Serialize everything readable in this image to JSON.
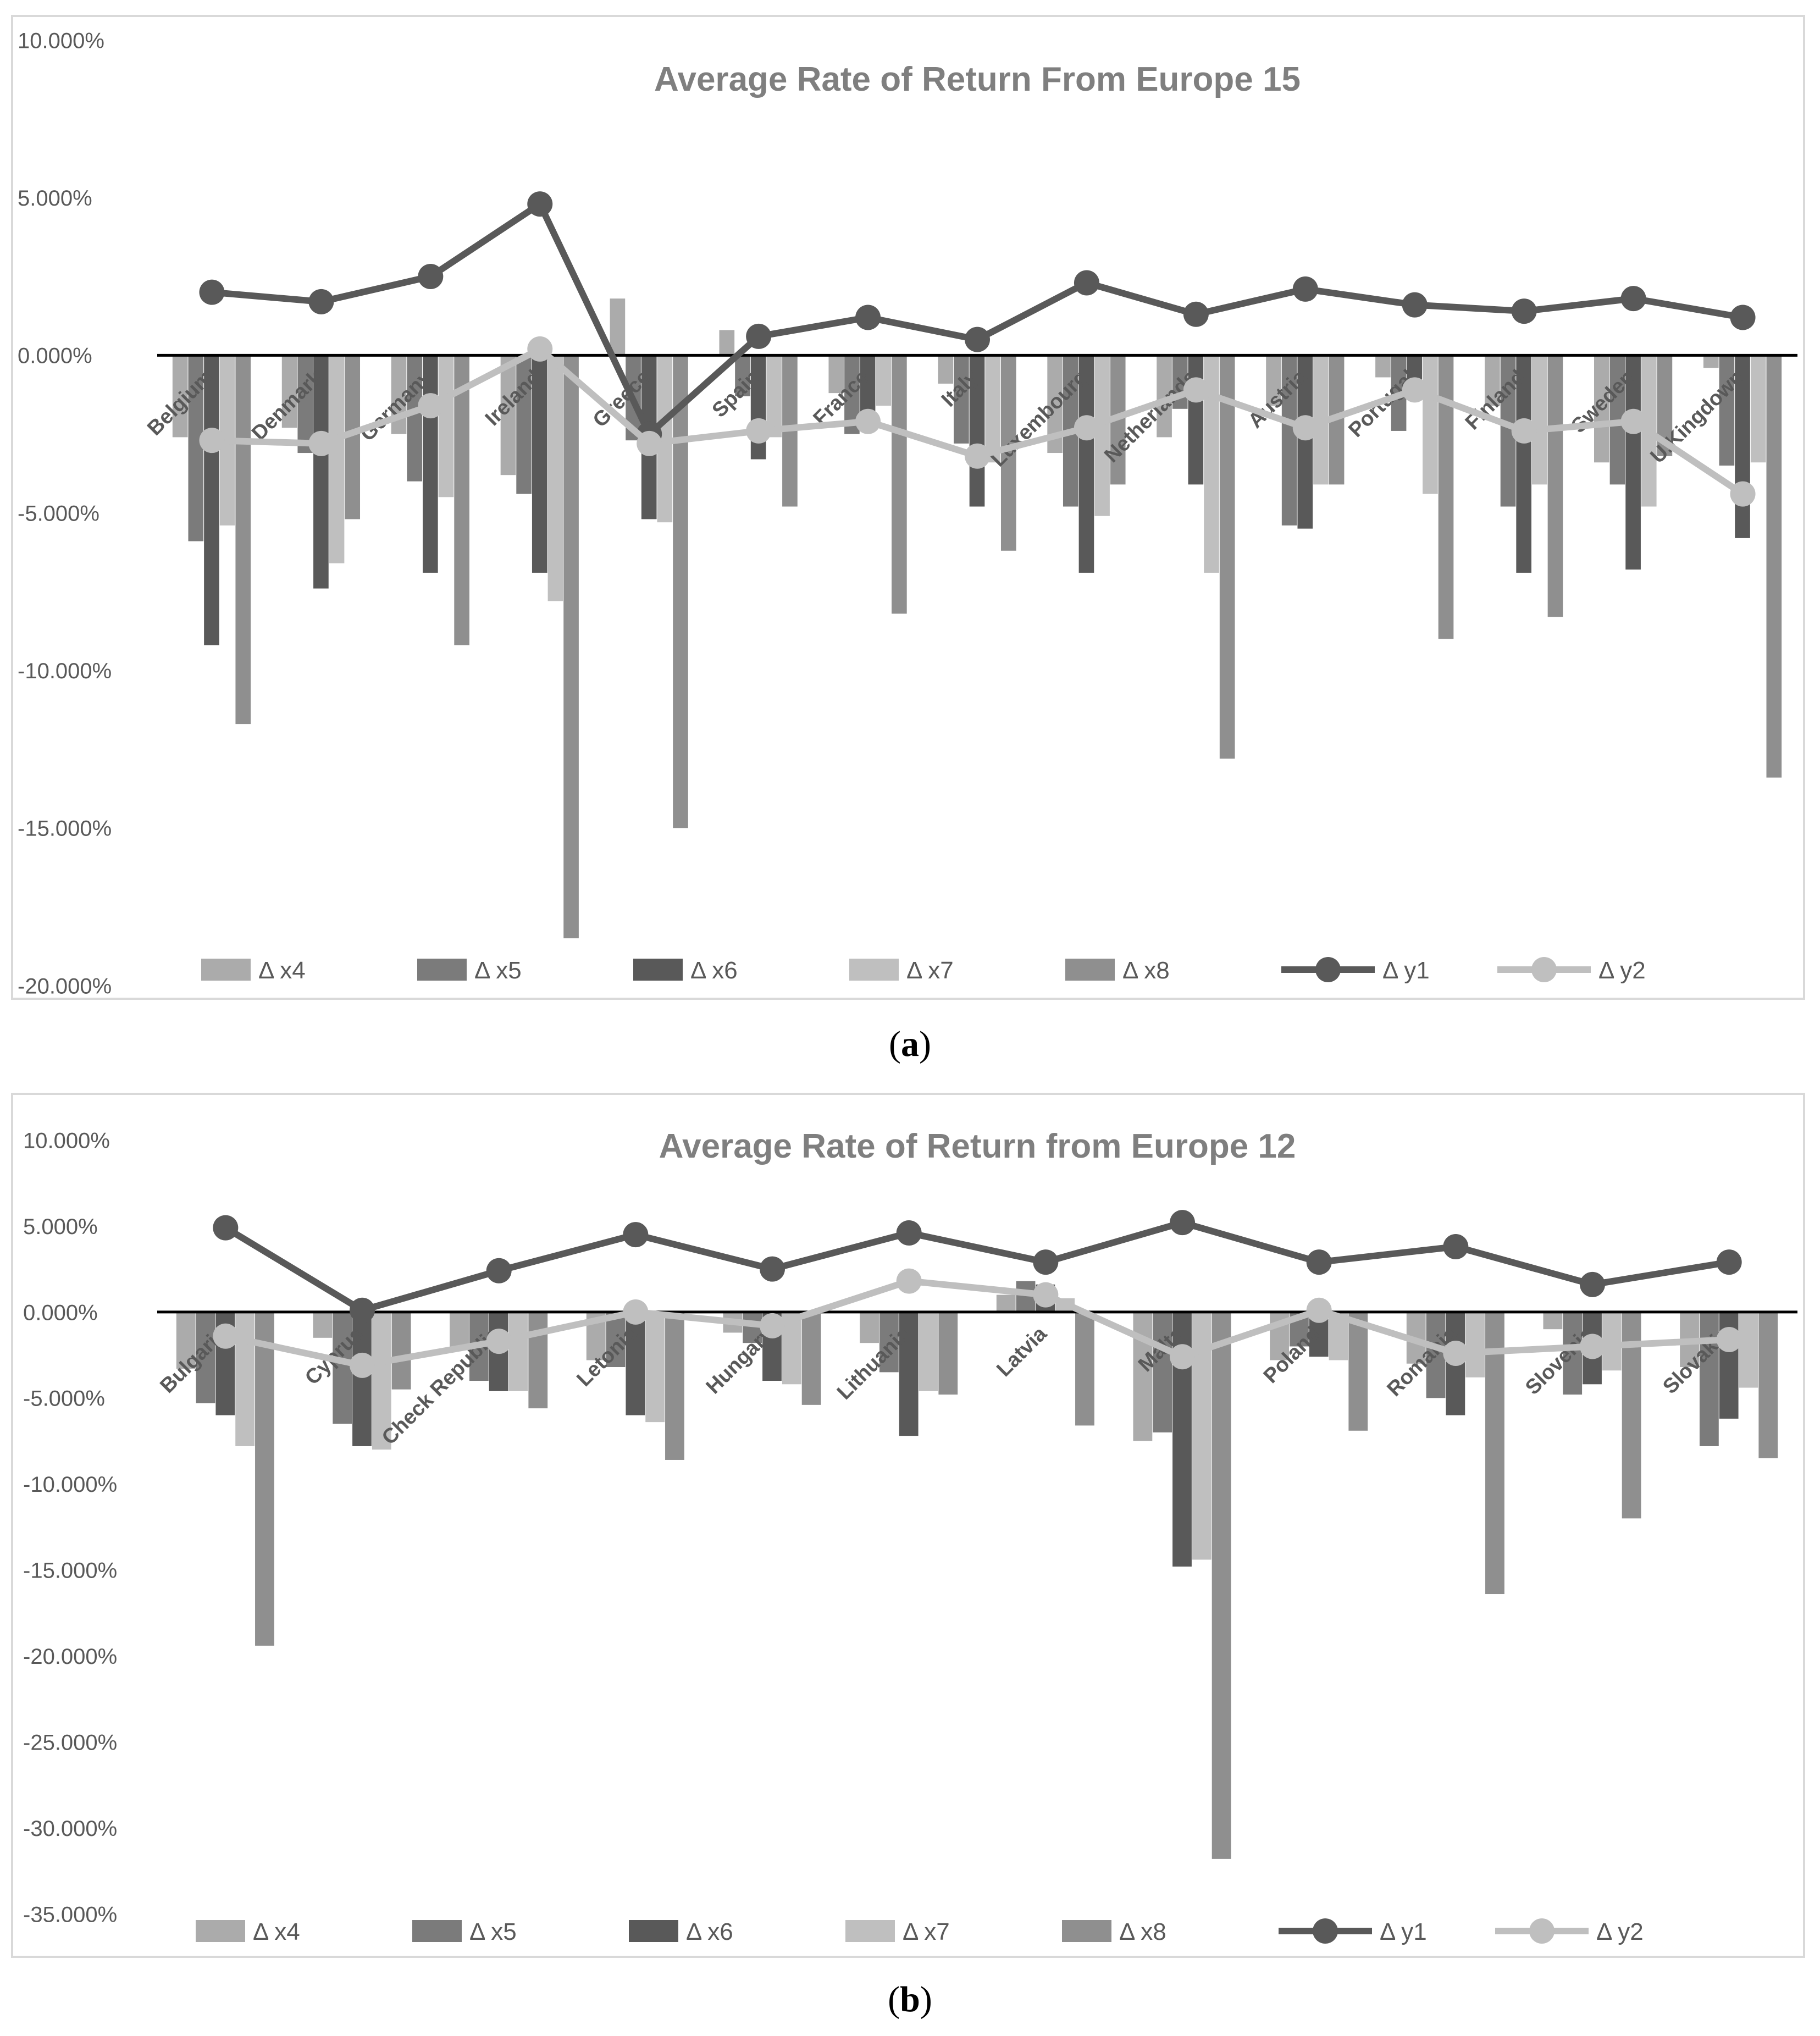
{
  "captions": {
    "a": "a",
    "b": "b"
  },
  "colors": {
    "x4": "#ababab",
    "x5": "#7b7b7b",
    "x6": "#595959",
    "x7": "#bfbfbf",
    "x8": "#8f8f8f",
    "y1": "#595959",
    "y2": "#bfbfbf",
    "axis_text": "#595959",
    "title": "#7f7f7f",
    "zero_line": "#000000"
  },
  "chart_data": [
    {
      "type": "bar",
      "title": "Average Rate of Return From Europe 15",
      "ylim": [
        -20,
        10
      ],
      "yticks": [
        10,
        5,
        0,
        -5,
        -10,
        -15,
        -20
      ],
      "ytick_labels": [
        "10.000%",
        "5.000%",
        "0.000%",
        "-5.000%",
        "-10.000%",
        "-15.000%",
        "-20.000%"
      ],
      "categories": [
        "Belgium",
        "Denmark",
        "Germany",
        "Ireland",
        "Greece",
        "Spain",
        "France",
        "Italy",
        "Luxembourg",
        "Netherlands",
        "Austria",
        "Portugal",
        "Finland",
        "Sweden",
        "U.Kingdown"
      ],
      "legend": [
        "Δ x4",
        "Δ x5",
        "Δ x6",
        "Δ x7",
        "Δ x8",
        "Δ y1",
        "Δ y2"
      ],
      "series": [
        {
          "name": "Δ x4",
          "kind": "bar",
          "values": [
            -2.6,
            -2.3,
            -2.5,
            -3.8,
            1.8,
            0.8,
            -1.2,
            -0.9,
            -3.1,
            -2.6,
            -1.6,
            -0.7,
            -1.6,
            -3.4,
            -0.4
          ]
        },
        {
          "name": "Δ x5",
          "kind": "bar",
          "values": [
            -5.9,
            -3.1,
            -4.0,
            -4.4,
            -2.7,
            -1.3,
            -2.5,
            -2.8,
            -4.8,
            -1.7,
            -5.4,
            -2.4,
            -4.8,
            -4.1,
            -3.5
          ]
        },
        {
          "name": "Δ x6",
          "kind": "bar",
          "values": [
            -9.2,
            -7.4,
            -6.9,
            -6.9,
            -5.2,
            -3.3,
            -2.4,
            -4.8,
            -6.9,
            -4.1,
            -5.5,
            -1.4,
            -6.9,
            -6.8,
            -5.8
          ]
        },
        {
          "name": "Δ x7",
          "kind": "bar",
          "values": [
            -5.4,
            -6.6,
            -4.5,
            -7.8,
            -5.3,
            -2.6,
            -1.6,
            -3.4,
            -5.1,
            -6.9,
            -4.1,
            -4.4,
            -4.1,
            -4.8,
            -3.4
          ]
        },
        {
          "name": "Δ x8",
          "kind": "bar",
          "values": [
            -11.7,
            -5.2,
            -9.2,
            -18.5,
            -15.0,
            -4.8,
            -8.2,
            -6.2,
            -4.1,
            -12.8,
            -4.1,
            -9.0,
            -8.3,
            -3.2,
            -13.4
          ]
        },
        {
          "name": "Δ y1",
          "kind": "line",
          "values": [
            2.0,
            1.7,
            2.5,
            4.8,
            -2.5,
            0.6,
            1.2,
            0.5,
            2.3,
            1.3,
            2.1,
            1.6,
            1.4,
            1.8,
            1.2
          ]
        },
        {
          "name": "Δ y2",
          "kind": "line",
          "values": [
            -2.7,
            -2.8,
            -1.6,
            0.2,
            -2.8,
            -2.4,
            -2.1,
            -3.2,
            -2.3,
            -1.1,
            -2.3,
            -1.1,
            -2.4,
            -2.1,
            -4.4
          ]
        }
      ]
    },
    {
      "type": "bar",
      "title": "Average Rate of Return from Europe 12",
      "ylim": [
        -35,
        10
      ],
      "yticks": [
        10,
        5,
        0,
        -5,
        -10,
        -15,
        -20,
        -25,
        -30,
        -35
      ],
      "ytick_labels": [
        "10.000%",
        "5.000%",
        "0.000%",
        "-5.000%",
        "-10.000%",
        "-15.000%",
        "-20.000%",
        "-25.000%",
        "-30.000%",
        "-35.000%"
      ],
      "categories": [
        "Bulgaria",
        "Cyprus",
        "Check Republic",
        "Letonia",
        "Hungary",
        "Lithuania",
        "Latvia",
        "Malta",
        "Poland",
        "Romania",
        "Slovenia",
        "Slovakia"
      ],
      "legend": [
        "Δ x4",
        "Δ x5",
        "Δ x6",
        "Δ x7",
        "Δ x8",
        "Δ y1",
        "Δ y2"
      ],
      "series": [
        {
          "name": "Δ x4",
          "kind": "bar",
          "values": [
            -3.3,
            -1.5,
            -2.2,
            -2.8,
            -1.2,
            -1.8,
            1.0,
            -7.5,
            -2.8,
            -3.0,
            -1.0,
            -3.2
          ]
        },
        {
          "name": "Δ x5",
          "kind": "bar",
          "values": [
            -5.3,
            -6.5,
            -4.0,
            -3.2,
            -1.8,
            -3.5,
            1.8,
            -7.0,
            -2.0,
            -5.0,
            -4.8,
            -7.8
          ]
        },
        {
          "name": "Δ x6",
          "kind": "bar",
          "values": [
            -6.0,
            -7.8,
            -4.6,
            -6.0,
            -4.0,
            -7.2,
            1.6,
            -14.8,
            -2.6,
            -6.0,
            -4.2,
            -6.2
          ]
        },
        {
          "name": "Δ x7",
          "kind": "bar",
          "values": [
            -7.8,
            -8.0,
            -4.6,
            -6.4,
            -4.2,
            -4.6,
            0.8,
            -14.4,
            -2.8,
            -3.8,
            -3.4,
            -4.4
          ]
        },
        {
          "name": "Δ x8",
          "kind": "bar",
          "values": [
            -19.4,
            -4.5,
            -5.6,
            -8.6,
            -5.4,
            -4.8,
            -6.6,
            -31.8,
            -6.9,
            -16.4,
            -12.0,
            -8.5
          ]
        },
        {
          "name": "Δ y1",
          "kind": "line",
          "values": [
            4.9,
            0.1,
            2.4,
            4.5,
            2.5,
            4.6,
            2.9,
            5.2,
            2.9,
            3.8,
            1.6,
            2.9
          ]
        },
        {
          "name": "Δ y2",
          "kind": "line",
          "values": [
            -1.4,
            -3.1,
            -1.7,
            0.0,
            -0.8,
            1.8,
            1.0,
            -2.6,
            0.1,
            -2.4,
            -2.0,
            -1.6
          ]
        }
      ]
    }
  ]
}
